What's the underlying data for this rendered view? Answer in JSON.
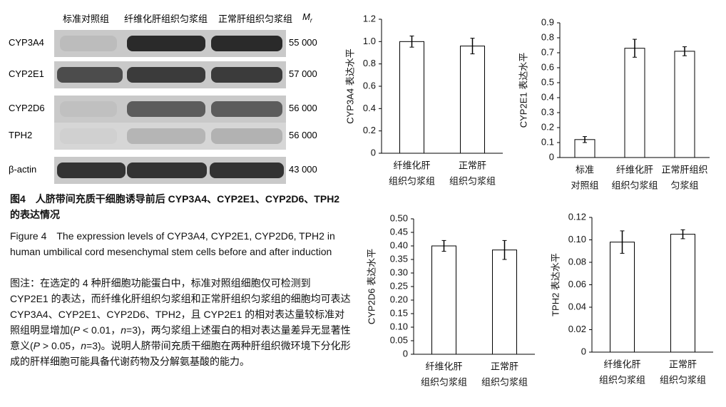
{
  "blot": {
    "columns": [
      "标准对照组",
      "纤维化肝组织匀浆组",
      "正常肝组织匀浆组"
    ],
    "mr": [
      "M",
      "r"
    ],
    "rows": [
      {
        "label": "CYP3A4",
        "mr": "55 000"
      },
      {
        "label": "CYP2E1",
        "mr": "57 000"
      },
      {
        "label": "CYP2D6",
        "mr": "56 000"
      },
      {
        "label": "TPH2",
        "mr": "56 000"
      },
      {
        "label": "β-actin",
        "mr": "43 000"
      }
    ]
  },
  "caption": {
    "title_cn": "图4　人脐带间充质干细胞诱导前后 CYP3A4、CYP2E1、CYP2D6、TPH2 的表达情况",
    "title_en": "Figure 4　The expression levels of CYP3A4, CYP2E1, CYP2D6, TPH2 in human umbilical cord mesenchymal stem cells before and after induction",
    "note": [
      "图注：在选定的 4 种肝细胞功能蛋白中，标准对照组细胞仅可检测到 CYP2E1 的表达，而纤维化肝组织匀浆组和正常肝组织匀浆组的细胞均可表达 CYP3A4、CYP2E1、CYP2D6、TPH2，且 CYP2E1 的相对表达量较标准对照组明显增加(",
      "P",
      " < 0.01，",
      "n",
      "=3)，两匀浆组上述蛋白的相对表达量差异无显著性意义(",
      "P",
      " > 0.05，",
      "n",
      "=3)。说明人脐带间充质干细胞在两种肝组织微环境下分化形成的肝样细胞可能具备代谢药物及分解氨基酸的能力。"
    ]
  },
  "chart_data": [
    {
      "type": "bar",
      "y_label": "CYP3A4 表达水平",
      "categories": [
        [
          "纤维化肝",
          "组织匀浆组"
        ],
        [
          "正常肝",
          "组织匀浆组"
        ]
      ],
      "values": [
        1.0,
        0.96
      ],
      "errors": [
        0.05,
        0.07
      ],
      "color": "#ffffff",
      "ylim": [
        0,
        1.2
      ],
      "yticks": [
        0,
        0.2,
        0.4,
        0.6,
        0.8,
        {
          "value": 1,
          "label": "1.0"
        },
        1.2
      ]
    },
    {
      "type": "bar",
      "y_label": "CYP2E1 表达水平",
      "categories": [
        [
          "标准",
          "对照组"
        ],
        [
          "纤维化肝",
          "组织匀浆组"
        ],
        [
          "正常肝组织",
          "匀浆组"
        ]
      ],
      "values": [
        0.12,
        0.73,
        0.71
      ],
      "errors": [
        0.02,
        0.06,
        0.03
      ],
      "color": "#ffffff",
      "ylim": [
        0,
        0.9
      ],
      "yticks": [
        0,
        0.1,
        0.2,
        0.3,
        0.4,
        0.5,
        0.6,
        0.7,
        0.8,
        0.9
      ]
    },
    {
      "type": "bar",
      "y_label": "CYP2D6 表达水平",
      "categories": [
        [
          "纤维化肝",
          "组织匀浆组"
        ],
        [
          "正常肝",
          "组织匀浆组"
        ]
      ],
      "values": [
        0.4,
        0.385
      ],
      "errors": [
        0.02,
        0.035
      ],
      "color": "#ffffff",
      "ylim": [
        0,
        0.5
      ],
      "yticks": [
        0,
        0.05,
        {
          "value": 0.1,
          "label": "0.10"
        },
        0.15,
        {
          "value": 0.2,
          "label": "0.20"
        },
        0.25,
        {
          "value": 0.3,
          "label": "0.30"
        },
        0.35,
        {
          "value": 0.4,
          "label": "0.40"
        },
        0.45,
        {
          "value": 0.5,
          "label": "0.50"
        }
      ]
    },
    {
      "type": "bar",
      "y_label": "TPH2 表达水平",
      "categories": [
        [
          "纤维化肝",
          "组织匀浆组"
        ],
        [
          "正常肝",
          "组织匀浆组"
        ]
      ],
      "values": [
        0.098,
        0.105
      ],
      "errors": [
        0.01,
        0.004
      ],
      "color": "#ffffff",
      "ylim": [
        0,
        0.12
      ],
      "yticks": [
        0,
        0.02,
        0.04,
        0.06,
        0.08,
        {
          "value": 0.1,
          "label": "0.10"
        },
        0.12
      ]
    }
  ]
}
